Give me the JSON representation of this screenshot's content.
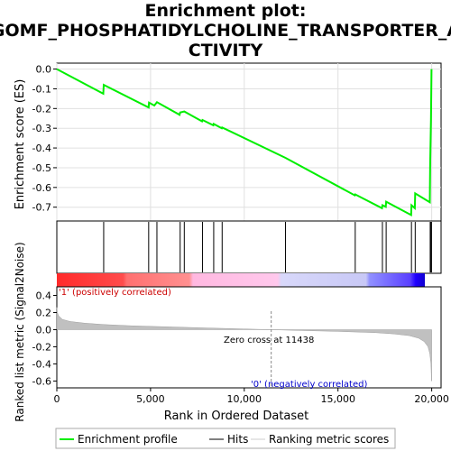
{
  "chart_data": {
    "type": "line",
    "title_lines": [
      "Enrichment plot:",
      "GOMF_PHOSPHATIDYLCHOLINE_TRANSPORTER_A",
      "CTIVITY"
    ],
    "es_panel": {
      "ylabel": "Enrichment score (ES)",
      "ylim": [
        -0.77,
        0.03
      ],
      "yticks": [
        0.0,
        -0.1,
        -0.2,
        -0.3,
        -0.4,
        -0.5,
        -0.6,
        -0.7
      ],
      "ytick_labels": [
        "0.0",
        "-0.1",
        "-0.2",
        "-0.3",
        "-0.4",
        "-0.5",
        "-0.6",
        "-0.7"
      ],
      "grid": true
    },
    "es_curve": {
      "name": "Enrichment profile",
      "color": "#00ff00",
      "points": [
        [
          0,
          0.0
        ],
        [
          2480,
          -0.125
        ],
        [
          2500,
          -0.08
        ],
        [
          4900,
          -0.195
        ],
        [
          4920,
          -0.17
        ],
        [
          5200,
          -0.185
        ],
        [
          5340,
          -0.168
        ],
        [
          6550,
          -0.232
        ],
        [
          6580,
          -0.22
        ],
        [
          6800,
          -0.215
        ],
        [
          7750,
          -0.265
        ],
        [
          7770,
          -0.258
        ],
        [
          8350,
          -0.285
        ],
        [
          8370,
          -0.278
        ],
        [
          8800,
          -0.3
        ],
        [
          8820,
          -0.296
        ],
        [
          12200,
          -0.45
        ],
        [
          15900,
          -0.64
        ],
        [
          15920,
          -0.635
        ],
        [
          17350,
          -0.705
        ],
        [
          17370,
          -0.69
        ],
        [
          17550,
          -0.698
        ],
        [
          17570,
          -0.672
        ],
        [
          18900,
          -0.74
        ],
        [
          18920,
          -0.69
        ],
        [
          19100,
          -0.705
        ],
        [
          19120,
          -0.63
        ],
        [
          19900,
          -0.675
        ],
        [
          19920,
          -0.485
        ],
        [
          19960,
          -0.26
        ],
        [
          19990,
          0.0
        ]
      ]
    },
    "hits": {
      "name": "Hits",
      "color": "#000000",
      "positions": [
        2500,
        4900,
        5340,
        6580,
        6800,
        7770,
        8370,
        8820,
        12200,
        15920,
        17370,
        17570,
        18920,
        19120,
        19920,
        19960,
        19990
      ]
    },
    "heat_bar": {
      "colors": [
        "#ff3030",
        "#ff8080",
        "#ffb0e0",
        "#d0d0f8",
        "#8080ff",
        "#2000ff"
      ],
      "positive_label": "'1' (positively correlated)",
      "negative_label": "'0' (negatively correlated)",
      "positive_label_color": "#cc0000",
      "negative_label_color": "#0000cc"
    },
    "metric_panel": {
      "ylabel": "Ranked list metric (Signal2Noise)",
      "ylim": [
        -0.68,
        0.5
      ],
      "yticks": [
        0.4,
        0.2,
        0.0,
        -0.2,
        -0.4,
        -0.6
      ],
      "ytick_labels": [
        "0.4",
        "0.2",
        "0.0",
        "-0.2",
        "-0.4",
        "-0.6"
      ],
      "zero_cross_label": "Zero cross at 11438",
      "zero_cross": 11438,
      "fill_color": "#c0c0c0",
      "name": "Ranking metric scores",
      "profile": [
        [
          0,
          0.26
        ],
        [
          30,
          0.2
        ],
        [
          100,
          0.16
        ],
        [
          300,
          0.12
        ],
        [
          700,
          0.095
        ],
        [
          1500,
          0.075
        ],
        [
          2500,
          0.06
        ],
        [
          4000,
          0.045
        ],
        [
          6000,
          0.032
        ],
        [
          8000,
          0.02
        ],
        [
          10000,
          0.008
        ],
        [
          11438,
          0.0
        ],
        [
          13000,
          -0.01
        ],
        [
          15000,
          -0.02
        ],
        [
          17000,
          -0.035
        ],
        [
          18000,
          -0.05
        ],
        [
          18800,
          -0.07
        ],
        [
          19300,
          -0.1
        ],
        [
          19600,
          -0.14
        ],
        [
          19800,
          -0.2
        ],
        [
          19900,
          -0.28
        ],
        [
          19960,
          -0.4
        ],
        [
          19990,
          -0.6
        ],
        [
          20000,
          -0.6
        ]
      ]
    },
    "xaxis": {
      "xlabel": "Rank in Ordered Dataset",
      "xlim": [
        0,
        20500
      ],
      "xticks": [
        0,
        5000,
        10000,
        15000,
        20000
      ],
      "xtick_labels": [
        "0",
        "5,000",
        "10,000",
        "15,000",
        "20,000"
      ]
    },
    "legend": {
      "entries": [
        "Enrichment profile",
        "Hits",
        "Ranking metric scores"
      ],
      "placement": "bottom"
    }
  }
}
